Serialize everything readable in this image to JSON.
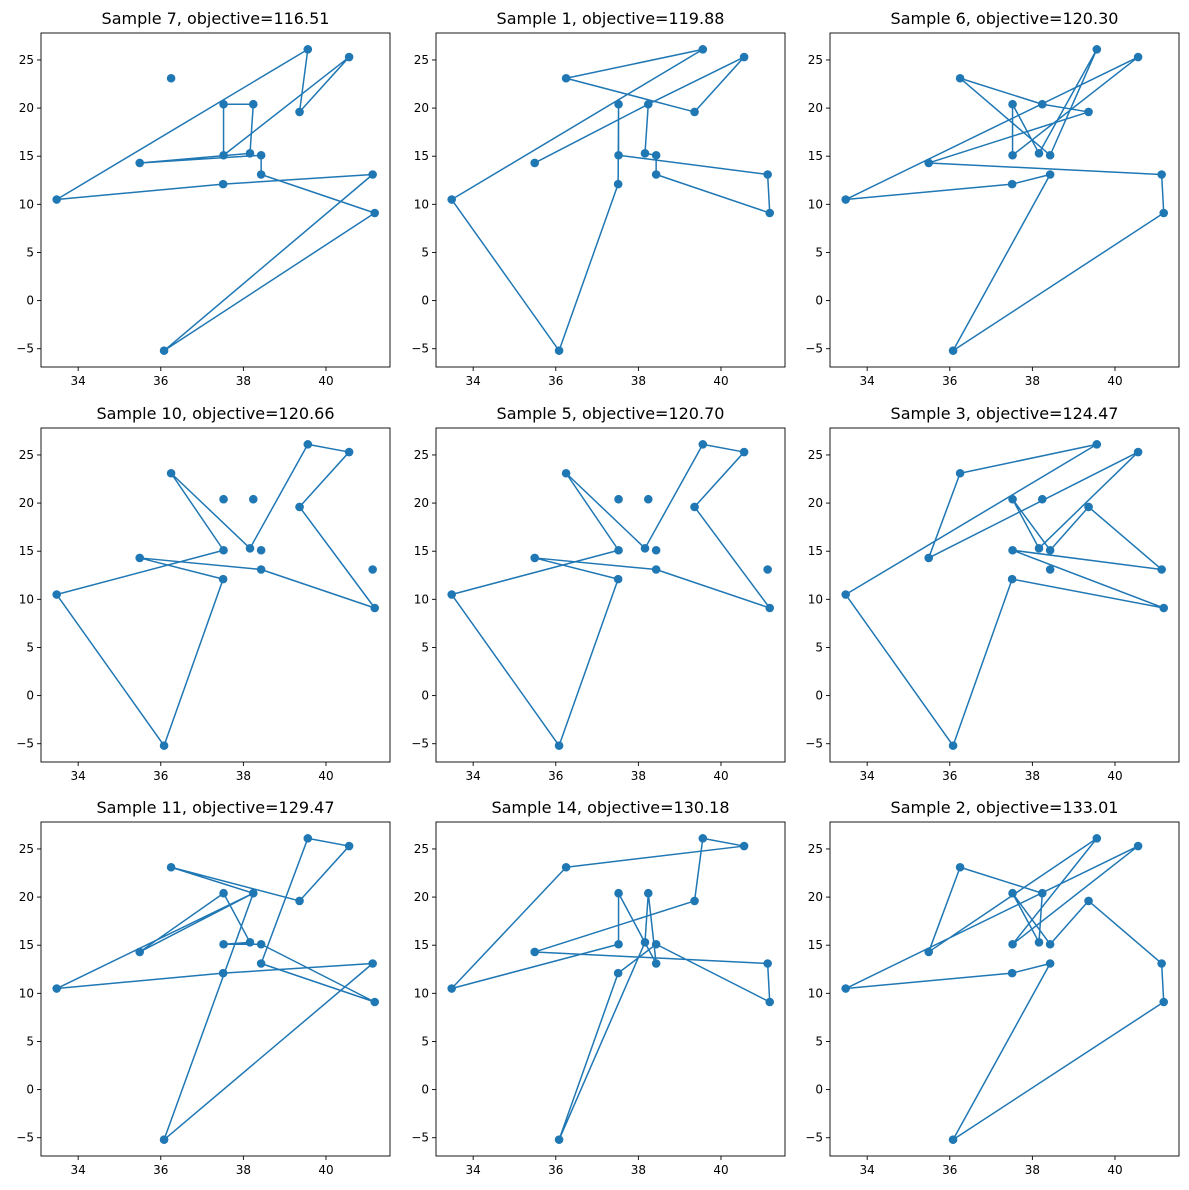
{
  "figure": {
    "colors": {
      "line": "#1f77b4",
      "marker": "#1f77b4"
    }
  },
  "points": [
    [
      36.08,
      -5.2
    ],
    [
      41.18,
      9.1
    ],
    [
      36.25,
      23.1
    ],
    [
      37.52,
      20.4
    ],
    [
      38.16,
      15.3
    ],
    [
      38.43,
      15.1
    ],
    [
      38.43,
      13.1
    ],
    [
      40.56,
      25.3
    ],
    [
      39.56,
      26.1
    ],
    [
      33.48,
      10.5
    ],
    [
      37.51,
      12.1
    ],
    [
      41.13,
      13.1
    ],
    [
      35.49,
      14.3
    ],
    [
      39.36,
      19.6
    ],
    [
      38.24,
      20.4
    ],
    [
      37.52,
      15.1
    ]
  ],
  "chart_data": [
    {
      "type": "line",
      "title": "Sample 7, objective=116.51",
      "x_ticks": [
        34,
        36,
        38,
        40
      ],
      "y_ticks": [
        -5,
        0,
        5,
        10,
        15,
        20,
        25
      ],
      "xlim": [
        33.1,
        41.55
      ],
      "ylim": [
        -6.9,
        27.8
      ],
      "grid": false,
      "route": [
        0,
        11,
        10,
        9,
        8,
        13,
        7,
        15,
        3,
        14,
        4,
        12,
        5,
        6,
        1,
        0
      ]
    },
    {
      "type": "line",
      "title": "Sample 1, objective=119.88",
      "x_ticks": [
        34,
        36,
        38,
        40
      ],
      "y_ticks": [
        -5,
        0,
        5,
        10,
        15,
        20,
        25
      ],
      "xlim": [
        33.1,
        41.55
      ],
      "ylim": [
        -6.9,
        27.8
      ],
      "grid": false,
      "route": [
        0,
        9,
        8,
        2,
        13,
        7,
        14,
        12,
        14,
        4,
        5,
        6,
        1,
        11,
        15,
        3,
        10,
        0
      ]
    },
    {
      "type": "line",
      "title": "Sample 6, objective=120.30",
      "x_ticks": [
        34,
        36,
        38,
        40
      ],
      "y_ticks": [
        -5,
        0,
        5,
        10,
        15,
        20,
        25
      ],
      "xlim": [
        33.1,
        41.55
      ],
      "ylim": [
        -6.9,
        27.8
      ],
      "grid": false,
      "route": [
        0,
        6,
        10,
        9,
        7,
        15,
        3,
        4,
        8,
        5,
        2,
        14,
        13,
        12,
        11,
        1,
        0
      ]
    },
    {
      "type": "line",
      "title": "Sample 10, objective=120.66",
      "x_ticks": [
        34,
        36,
        38,
        40
      ],
      "y_ticks": [
        -5,
        0,
        5,
        10,
        15,
        20,
        25
      ],
      "xlim": [
        33.1,
        41.55
      ],
      "ylim": [
        -6.9,
        27.8
      ],
      "grid": false,
      "route": [
        0,
        9,
        15,
        2,
        4,
        8,
        7,
        13,
        1,
        6,
        12,
        10,
        0
      ]
    },
    {
      "type": "line",
      "title": "Sample 5, objective=120.70",
      "x_ticks": [
        34,
        36,
        38,
        40
      ],
      "y_ticks": [
        -5,
        0,
        5,
        10,
        15,
        20,
        25
      ],
      "xlim": [
        33.1,
        41.55
      ],
      "ylim": [
        -6.9,
        27.8
      ],
      "grid": false,
      "route": [
        0,
        9,
        15,
        2,
        4,
        8,
        7,
        13,
        1,
        6,
        12,
        10,
        0
      ]
    },
    {
      "type": "line",
      "title": "Sample 3, objective=124.47",
      "x_ticks": [
        34,
        36,
        38,
        40
      ],
      "y_ticks": [
        -5,
        0,
        5,
        10,
        15,
        20,
        25
      ],
      "xlim": [
        33.1,
        41.55
      ],
      "ylim": [
        -6.9,
        27.8
      ],
      "grid": false,
      "route": [
        0,
        9,
        8,
        2,
        12,
        7,
        4,
        3,
        5,
        13,
        11,
        15,
        1,
        10,
        0
      ]
    },
    {
      "type": "line",
      "title": "Sample 11, objective=129.47",
      "x_ticks": [
        34,
        36,
        38,
        40
      ],
      "y_ticks": [
        -5,
        0,
        5,
        10,
        15,
        20,
        25
      ],
      "xlim": [
        33.1,
        41.55
      ],
      "ylim": [
        -6.9,
        27.8
      ],
      "grid": false,
      "route": [
        0,
        11,
        10,
        9,
        14,
        12,
        3,
        4,
        15,
        5,
        1,
        6,
        8,
        7,
        13,
        2,
        14,
        0
      ]
    },
    {
      "type": "line",
      "title": "Sample 14, objective=130.18",
      "x_ticks": [
        34,
        36,
        38,
        40
      ],
      "y_ticks": [
        -5,
        0,
        5,
        10,
        15,
        20,
        25
      ],
      "xlim": [
        33.1,
        41.55
      ],
      "ylim": [
        -6.9,
        27.8
      ],
      "grid": false,
      "route": [
        0,
        4,
        14,
        6,
        3,
        15,
        9,
        2,
        7,
        8,
        13,
        12,
        11,
        1,
        5,
        10,
        0
      ]
    },
    {
      "type": "line",
      "title": "Sample 2, objective=133.01",
      "x_ticks": [
        34,
        36,
        38,
        40
      ],
      "y_ticks": [
        -5,
        0,
        5,
        10,
        15,
        20,
        25
      ],
      "xlim": [
        33.1,
        41.55
      ],
      "ylim": [
        -6.9,
        27.8
      ],
      "grid": false,
      "route": [
        0,
        6,
        10,
        9,
        7,
        15,
        8,
        12,
        2,
        14,
        4,
        3,
        5,
        13,
        11,
        1,
        0
      ]
    }
  ]
}
